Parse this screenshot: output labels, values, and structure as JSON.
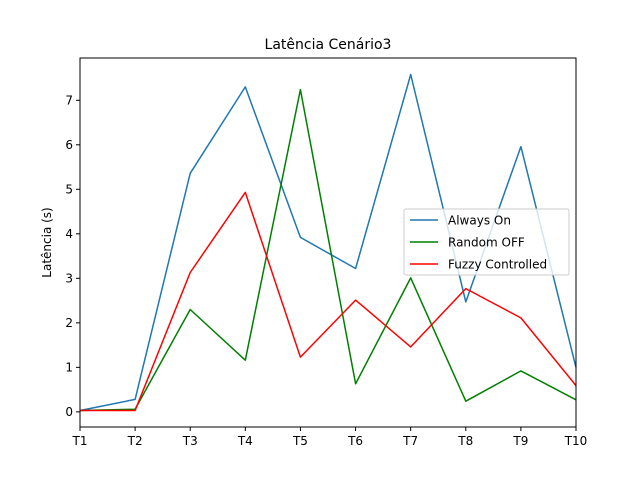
{
  "chart_data": {
    "type": "line",
    "title": "Latência Cenário3",
    "xlabel": "",
    "ylabel": "Latência (s)",
    "categories": [
      "T1",
      "T2",
      "T3",
      "T4",
      "T5",
      "T6",
      "T7",
      "T8",
      "T9",
      "T10"
    ],
    "ylim": [
      -0.34,
      7.95
    ],
    "yticks": [
      0,
      1,
      2,
      3,
      4,
      5,
      6,
      7
    ],
    "grid": false,
    "legend_position": "center-right",
    "series": [
      {
        "name": "Always On",
        "color": "#1f77b4",
        "values": [
          0.03,
          0.28,
          5.36,
          7.3,
          3.92,
          3.22,
          7.58,
          2.47,
          5.96,
          1.0
        ]
      },
      {
        "name": "Random OFF",
        "color": "#008000",
        "values": [
          0.03,
          0.06,
          2.3,
          1.16,
          7.24,
          0.63,
          3.01,
          0.24,
          0.92,
          0.27
        ]
      },
      {
        "name": "Fuzzy Controlled",
        "color": "#ff0000",
        "values": [
          0.03,
          0.03,
          3.13,
          4.93,
          1.23,
          2.51,
          1.46,
          2.77,
          2.11,
          0.59
        ]
      }
    ]
  }
}
